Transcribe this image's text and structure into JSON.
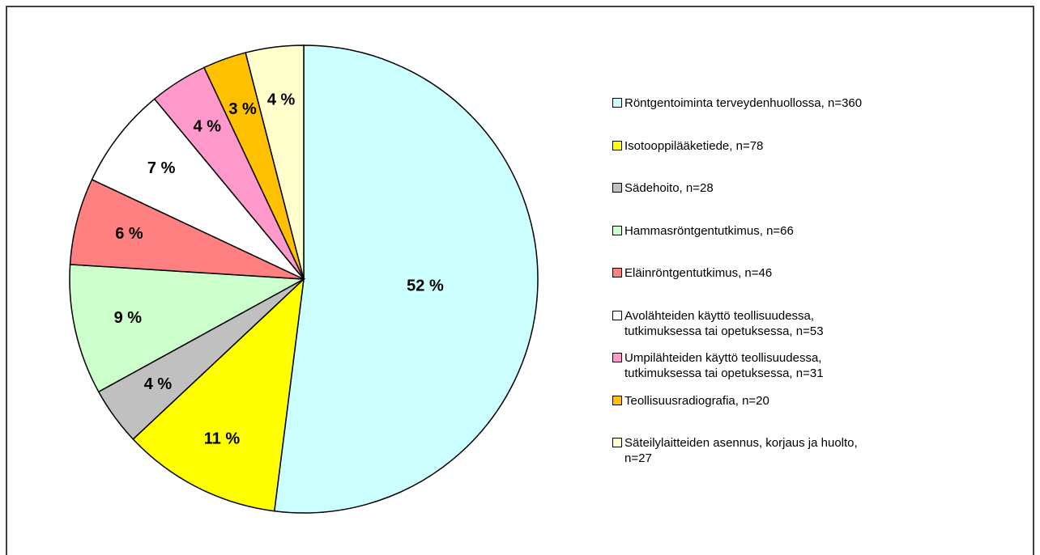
{
  "chart_data": {
    "type": "pie",
    "categories": [
      "Röntgentoiminta terveydenhuollossa, n=360",
      "Isotooppilääketiede, n=78",
      "Sädehoito, n=28",
      "Hammasröntgentutkimus, n=66",
      "Eläinröntgentutkimus, n=46",
      "Avolähteiden käyttö teollisuudessa, tutkimuksessa tai opetuksessa, n=53",
      "Umpilähteiden käyttö teollisuudessa, tutkimuksessa tai opetuksessa, n=31",
      "Teollisuusradiografia, n=20",
      "Säteilylaitteiden asennus, korjaus ja huolto, n=27"
    ],
    "values": [
      52,
      11,
      4,
      9,
      6,
      7,
      4,
      3,
      4
    ],
    "value_labels": [
      "52 %",
      "11 %",
      "4 %",
      "9 %",
      "6 %",
      "7 %",
      "4 %",
      "3 %",
      "4 %"
    ],
    "colors": [
      "#ccffff",
      "#ffff00",
      "#c0c0c0",
      "#ccffcc",
      "#ff8080",
      "#ffffff",
      "#ff99cc",
      "#ffc000",
      "#ffffcc"
    ],
    "legend": "right"
  }
}
